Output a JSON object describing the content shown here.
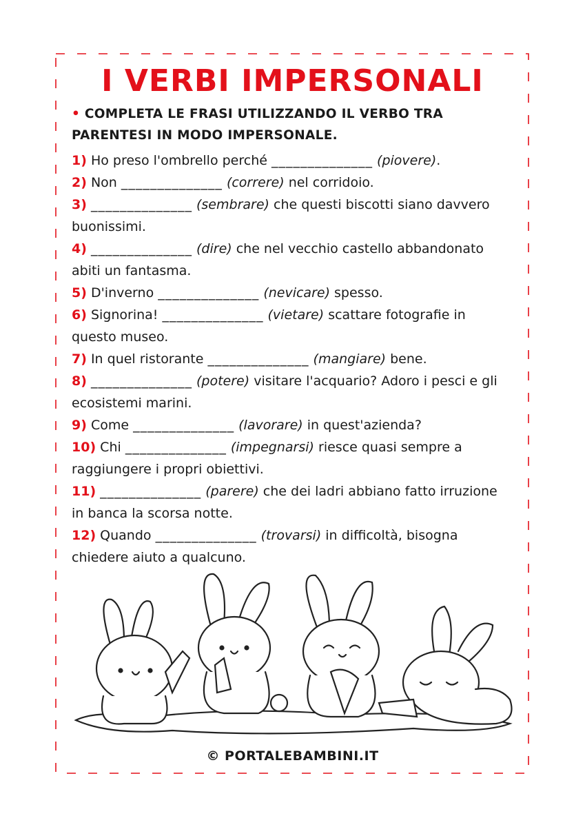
{
  "title": "I VERBI IMPERSONALI",
  "instruction": {
    "bullet": "•",
    "text": "COMPLETA LE FRASI UTILIZZANDO IL VERBO TRA PARENTESI IN MODO IMPERSONALE."
  },
  "colors": {
    "accent": "#e3101a",
    "text": "#1a1a1a"
  },
  "items": [
    {
      "num": "1)",
      "pre": "Ho preso l'ombrello perché",
      "blank": "______________",
      "verb": "(piovere)",
      "post": "."
    },
    {
      "num": "2)",
      "pre": "Non",
      "blank": "______________",
      "verb": "(correre)",
      "post": "nel corridoio."
    },
    {
      "num": "3)",
      "pre": "",
      "blank": "______________",
      "verb": "(sembrare)",
      "post": "che questi biscotti siano davvero buonissimi."
    },
    {
      "num": "4)",
      "pre": "",
      "blank": "______________",
      "verb": "(dire)",
      "post": "che nel vecchio castello abbandonato abiti un fantasma."
    },
    {
      "num": "5)",
      "pre": "D'inverno",
      "blank": "______________",
      "verb": "(nevicare)",
      "post": "spesso."
    },
    {
      "num": "6)",
      "pre": "Signorina!",
      "blank": "______________",
      "verb": "(vietare)",
      "post": "scattare fotografie in questo museo."
    },
    {
      "num": "7)",
      "pre": "In quel ristorante",
      "blank": "______________",
      "verb": "(mangiare)",
      "post": "bene."
    },
    {
      "num": "8)",
      "pre": "",
      "blank": "______________",
      "verb": "(potere)",
      "post": "visitare l'acquario? Adoro i pesci e gli ecosistemi marini."
    },
    {
      "num": "9)",
      "pre": "Come",
      "blank": "______________",
      "verb": "(lavorare)",
      "post": "in quest'azienda?"
    },
    {
      "num": "10)",
      "pre": "Chi",
      "blank": "______________",
      "verb": "(impegnarsi)",
      "post": "riesce quasi sempre a raggiungere i propri obiettivi."
    },
    {
      "num": "11)",
      "pre": "",
      "blank": "______________",
      "verb": "(parere)",
      "post": "che dei ladri abbiano fatto irruzione in banca la scorsa notte."
    },
    {
      "num": "12)",
      "pre": "Quando",
      "blank": "______________",
      "verb": "(trovarsi)",
      "post": "in difficoltà, bisogna chiedere aiuto a qualcuno."
    }
  ],
  "illustration": "bunnies-with-carrots",
  "footer": "© PORTALEBAMBINI.IT"
}
